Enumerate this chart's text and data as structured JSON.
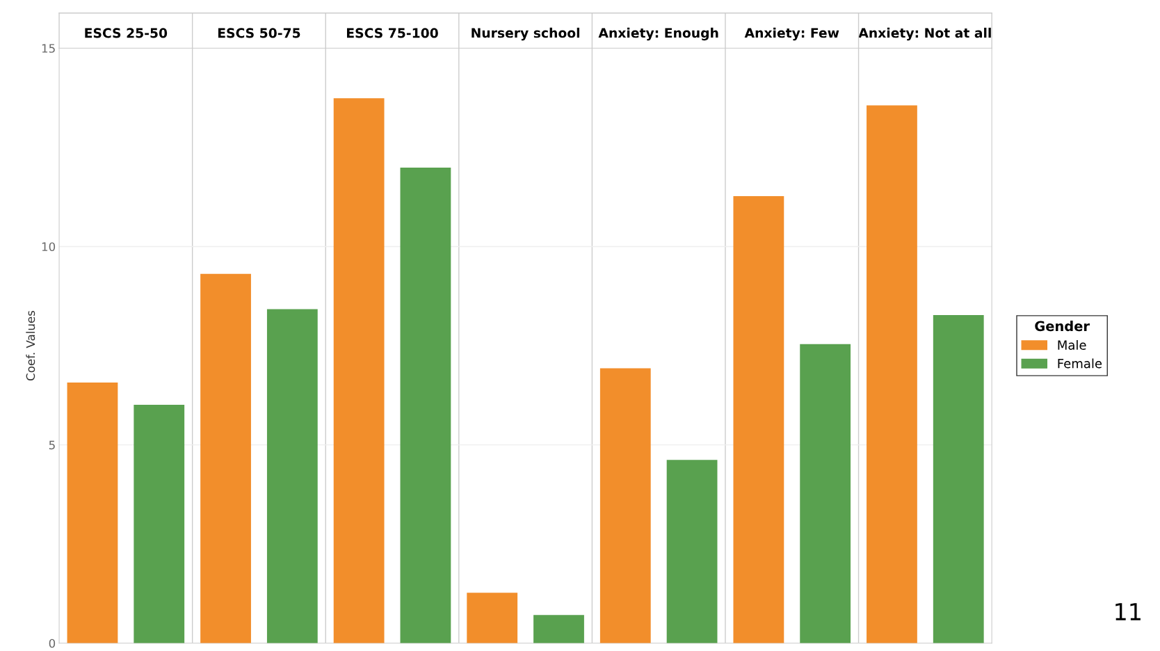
{
  "chart_data": {
    "type": "bar",
    "ylabel": "Coef. Values",
    "legend_title": "Gender",
    "categories": [
      "ESCS 25-50",
      "ESCS 50-75",
      "ESCS 75-100",
      "Nursery school",
      "Anxiety: Enough",
      "Anxiety: Few",
      "Anxiety: Not at all"
    ],
    "series": [
      {
        "name": "Male",
        "color": "#f28e2b",
        "values": [
          6.57,
          9.31,
          13.74,
          1.27,
          6.93,
          11.27,
          13.56
        ]
      },
      {
        "name": "Female",
        "color": "#59a14f",
        "values": [
          6.01,
          8.42,
          11.99,
          0.71,
          4.62,
          7.54,
          8.27
        ]
      }
    ],
    "ylim": [
      0,
      15
    ],
    "yticks": [
      0,
      5,
      10,
      15
    ],
    "grid": "y",
    "legend": "right",
    "annotations": [
      "11"
    ]
  }
}
